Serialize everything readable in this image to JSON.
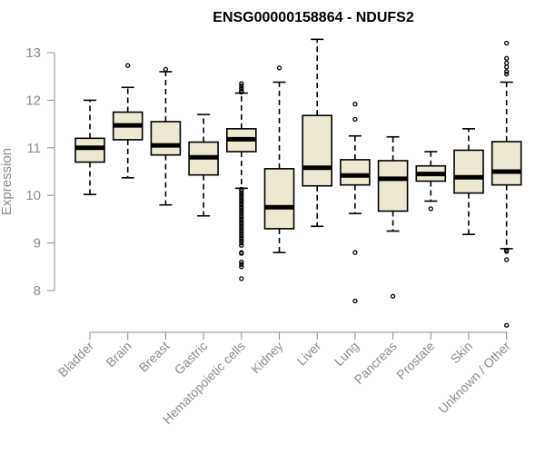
{
  "chart_data": {
    "type": "boxplot",
    "title": "ENSG00000158864 - NDUFS2",
    "xlabel": "",
    "ylabel": "Expression",
    "ylim": [
      7.1,
      13.3
    ],
    "yticks": [
      "8",
      "9",
      "10",
      "11",
      "12",
      "13"
    ],
    "grid": false,
    "colors": {
      "box_fill": "#ede8d1",
      "box_stroke": "#000000",
      "axis": "#8c8c8c"
    },
    "categories": [
      "Bladder",
      "Brain",
      "Breast",
      "Gastric",
      "Hematopoietic cells",
      "Kidney",
      "Liver",
      "Lung",
      "Pancreas",
      "Prostate",
      "Skin",
      "Unknown / Other"
    ],
    "boxes": [
      {
        "name": "Bladder",
        "whisker_low": 10.02,
        "q1": 10.7,
        "median": 11.0,
        "q3": 11.2,
        "whisker_high": 12.0,
        "outliers": []
      },
      {
        "name": "Brain",
        "whisker_low": 10.37,
        "q1": 11.17,
        "median": 11.47,
        "q3": 11.75,
        "whisker_high": 12.27,
        "outliers": [
          12.73
        ]
      },
      {
        "name": "Breast",
        "whisker_low": 9.8,
        "q1": 10.85,
        "median": 11.05,
        "q3": 11.55,
        "whisker_high": 12.6,
        "outliers": [
          12.65
        ]
      },
      {
        "name": "Gastric",
        "whisker_low": 9.57,
        "q1": 10.43,
        "median": 10.8,
        "q3": 11.12,
        "whisker_high": 11.7,
        "outliers": []
      },
      {
        "name": "Hematopoietic cells",
        "whisker_low": 10.15,
        "q1": 10.92,
        "median": 11.18,
        "q3": 11.4,
        "whisker_high": 12.15,
        "outliers": [
          12.35,
          12.3,
          12.25,
          12.2,
          12.17,
          10.13,
          10.1,
          10.05,
          10.0,
          9.95,
          9.9,
          9.85,
          9.8,
          9.75,
          9.7,
          9.65,
          9.6,
          9.55,
          9.5,
          9.45,
          9.4,
          9.35,
          9.3,
          9.25,
          9.2,
          9.15,
          9.1,
          9.05,
          9.0,
          8.95,
          8.8,
          8.78,
          8.6,
          8.55,
          8.5,
          8.25
        ]
      },
      {
        "name": "Kidney",
        "whisker_low": 8.8,
        "q1": 9.3,
        "median": 9.75,
        "q3": 10.56,
        "whisker_high": 12.38,
        "outliers": [
          12.68
        ]
      },
      {
        "name": "Liver",
        "whisker_low": 9.35,
        "q1": 10.2,
        "median": 10.58,
        "q3": 11.68,
        "whisker_high": 13.28,
        "outliers": []
      },
      {
        "name": "Lung",
        "whisker_low": 9.62,
        "q1": 10.22,
        "median": 10.42,
        "q3": 10.75,
        "whisker_high": 11.25,
        "outliers": [
          11.92,
          11.6,
          8.8,
          7.78
        ]
      },
      {
        "name": "Pancreas",
        "whisker_low": 9.25,
        "q1": 9.67,
        "median": 10.35,
        "q3": 10.73,
        "whisker_high": 11.23,
        "outliers": [
          7.88
        ]
      },
      {
        "name": "Prostate",
        "whisker_low": 9.88,
        "q1": 10.3,
        "median": 10.45,
        "q3": 10.62,
        "whisker_high": 10.92,
        "outliers": [
          9.72
        ]
      },
      {
        "name": "Skin",
        "whisker_low": 9.18,
        "q1": 10.05,
        "median": 10.38,
        "q3": 10.95,
        "whisker_high": 11.4,
        "outliers": []
      },
      {
        "name": "Unknown / Other",
        "whisker_low": 8.88,
        "q1": 10.22,
        "median": 10.5,
        "q3": 11.13,
        "whisker_high": 12.38,
        "outliers": [
          13.2,
          12.88,
          12.78,
          12.7,
          12.6,
          12.55,
          8.85,
          8.82,
          8.65,
          7.27
        ]
      }
    ]
  }
}
